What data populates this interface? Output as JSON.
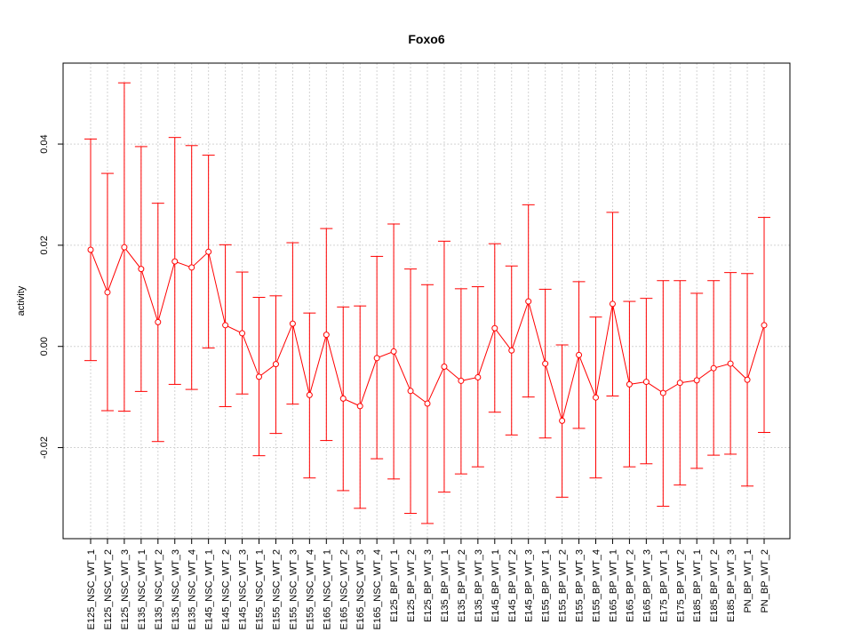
{
  "chart_data": {
    "type": "line",
    "title": "Foxo6",
    "xlabel": "",
    "ylabel": "activity",
    "ylim": [
      -0.038,
      0.056
    ],
    "yticks": [
      -0.02,
      0.0,
      0.02,
      0.04
    ],
    "ytick_labels": [
      "-0.02",
      "0.00",
      "0.02",
      "0.04"
    ],
    "grid": true,
    "color": "#ff0000",
    "categories": [
      "E125_NSC_WT_1",
      "E125_NSC_WT_2",
      "E125_NSC_WT_3",
      "E135_NSC_WT_1",
      "E135_NSC_WT_2",
      "E135_NSC_WT_3",
      "E135_NSC_WT_4",
      "E145_NSC_WT_1",
      "E145_NSC_WT_2",
      "E145_NSC_WT_3",
      "E155_NSC_WT_1",
      "E155_NSC_WT_2",
      "E155_NSC_WT_3",
      "E155_NSC_WT_4",
      "E165_NSC_WT_1",
      "E165_NSC_WT_2",
      "E165_NSC_WT_3",
      "E165_NSC_WT_4",
      "E125_BP_WT_1",
      "E125_BP_WT_2",
      "E125_BP_WT_3",
      "E135_BP_WT_1",
      "E135_BP_WT_2",
      "E135_BP_WT_3",
      "E145_BP_WT_1",
      "E145_BP_WT_2",
      "E145_BP_WT_3",
      "E155_BP_WT_1",
      "E155_BP_WT_2",
      "E155_BP_WT_3",
      "E155_BP_WT_4",
      "E165_BP_WT_1",
      "E165_BP_WT_2",
      "E165_BP_WT_3",
      "E175_BP_WT_1",
      "E175_BP_WT_2",
      "E185_BP_WT_1",
      "E185_BP_WT_2",
      "E185_BP_WT_3",
      "PN_BP_WT_1",
      "PN_BP_WT_2"
    ],
    "series": [
      {
        "values": [
          0.0191,
          0.0107,
          0.0196,
          0.0153,
          0.0048,
          0.0168,
          0.0156,
          0.0187,
          0.0042,
          0.0026,
          -0.006,
          -0.0035,
          0.0045,
          -0.0096,
          0.0023,
          -0.0103,
          -0.0118,
          -0.0023,
          -0.001,
          -0.0088,
          -0.0113,
          -0.004,
          -0.0068,
          -0.0061,
          0.0036,
          -0.0008,
          0.0089,
          -0.0034,
          -0.0147,
          -0.0017,
          -0.0101,
          0.0084,
          -0.0075,
          -0.007,
          -0.0092,
          -0.0072,
          -0.0067,
          -0.0043,
          -0.0034,
          -0.0066,
          0.0042
        ],
        "lower": [
          -0.0028,
          -0.0127,
          -0.0128,
          -0.0089,
          -0.0188,
          -0.0075,
          -0.0085,
          -0.0003,
          -0.0119,
          -0.0094,
          -0.0216,
          -0.0172,
          -0.0114,
          -0.026,
          -0.0186,
          -0.0285,
          -0.032,
          -0.0222,
          -0.0262,
          -0.033,
          -0.035,
          -0.0288,
          -0.0252,
          -0.0238,
          -0.013,
          -0.0175,
          -0.01,
          -0.0181,
          -0.0298,
          -0.0162,
          -0.026,
          -0.0098,
          -0.0238,
          -0.0232,
          -0.0316,
          -0.0274,
          -0.0241,
          -0.0215,
          -0.0213,
          -0.0276,
          -0.017
        ],
        "upper": [
          0.041,
          0.0342,
          0.0521,
          0.0395,
          0.0283,
          0.0413,
          0.0397,
          0.0378,
          0.0201,
          0.0147,
          0.0097,
          0.01,
          0.0205,
          0.0066,
          0.0233,
          0.0078,
          0.008,
          0.0178,
          0.0242,
          0.0153,
          0.0122,
          0.0208,
          0.0114,
          0.0118,
          0.0203,
          0.0159,
          0.028,
          0.0113,
          0.0003,
          0.0128,
          0.0058,
          0.0265,
          0.0089,
          0.0095,
          0.013,
          0.013,
          0.0105,
          0.013,
          0.0146,
          0.0144,
          0.0255
        ]
      }
    ]
  }
}
